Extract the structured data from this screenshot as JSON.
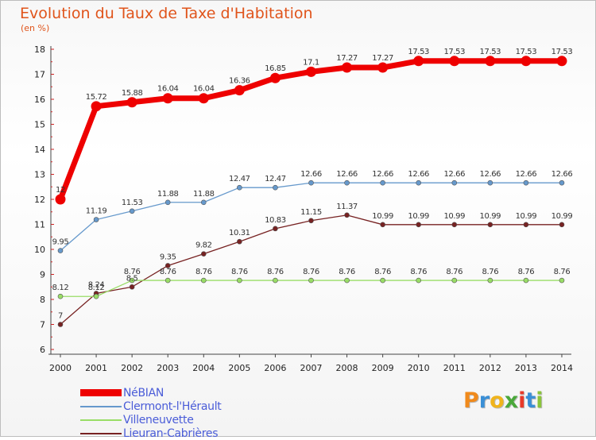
{
  "title": "Evolution du Taux de Taxe d'Habitation",
  "subtitle": "(en %)",
  "brand": {
    "text": "Proxiti",
    "letter_colors": [
      "#f08a1c",
      "#3a8fd6",
      "#f0b41c",
      "#4aa83a",
      "#e83a2a",
      "#3a8fd6",
      "#8ac43a"
    ]
  },
  "chart_data": {
    "type": "line",
    "title": "Evolution du Taux de Taxe d'Habitation",
    "ylabel": "(en %)",
    "xlabel": "",
    "ylim": [
      6,
      18
    ],
    "y_ticks": [
      6,
      7,
      8,
      9,
      10,
      11,
      12,
      13,
      14,
      15,
      16,
      17,
      18
    ],
    "grid": false,
    "legend_position": "bottom-left",
    "categories": [
      "2000",
      "2001",
      "2002",
      "2003",
      "2004",
      "2005",
      "2006",
      "2007",
      "2008",
      "2009",
      "2010",
      "2011",
      "2012",
      "2013",
      "2014"
    ],
    "series": [
      {
        "name": "NéBIAN",
        "color": "#ee0000",
        "values": [
          12,
          15.72,
          15.88,
          16.04,
          16.04,
          16.36,
          16.85,
          17.1,
          17.27,
          17.27,
          17.53,
          17.53,
          17.53,
          17.53,
          17.53
        ],
        "labels": [
          "12",
          "15.72",
          "15.88",
          "16.04",
          "16.04",
          "16.36",
          "16.85",
          "17.1",
          "17.27",
          "17.27",
          "17.53",
          "17.53",
          "17.53",
          "17.53",
          "17.53"
        ]
      },
      {
        "name": "Clermont-l'Hérault",
        "color": "#6699cc",
        "values": [
          9.95,
          11.19,
          11.53,
          11.88,
          11.88,
          12.47,
          12.47,
          12.66,
          12.66,
          12.66,
          12.66,
          12.66,
          12.66,
          12.66,
          12.66
        ],
        "labels": [
          "9.95",
          "11.19",
          "11.53",
          "11.88",
          "11.88",
          "12.47",
          "12.47",
          "12.66",
          "12.66",
          "12.66",
          "12.66",
          "12.66",
          "12.66",
          "12.66",
          "12.66"
        ]
      },
      {
        "name": "Villeneuvette",
        "color": "#99dd66",
        "values": [
          8.12,
          8.12,
          8.76,
          8.76,
          8.76,
          8.76,
          8.76,
          8.76,
          8.76,
          8.76,
          8.76,
          8.76,
          8.76,
          8.76,
          8.76
        ],
        "labels": [
          "8.12",
          "8.12",
          "8.76",
          "8.76",
          "8.76",
          "8.76",
          "8.76",
          "8.76",
          "8.76",
          "8.76",
          "8.76",
          "8.76",
          "8.76",
          "8.76",
          "8.76"
        ]
      },
      {
        "name": "Lieuran-Cabrières",
        "color": "#772222",
        "values": [
          7,
          8.24,
          8.5,
          9.35,
          9.82,
          10.31,
          10.83,
          11.15,
          11.37,
          10.99,
          10.99,
          10.99,
          10.99,
          10.99,
          10.99
        ],
        "labels": [
          "7",
          "8.24",
          "8.5",
          "9.35",
          "9.82",
          "10.31",
          "10.83",
          "11.15",
          "11.37",
          "10.99",
          "10.99",
          "10.99",
          "10.99",
          "10.99",
          "10.99"
        ]
      }
    ]
  }
}
